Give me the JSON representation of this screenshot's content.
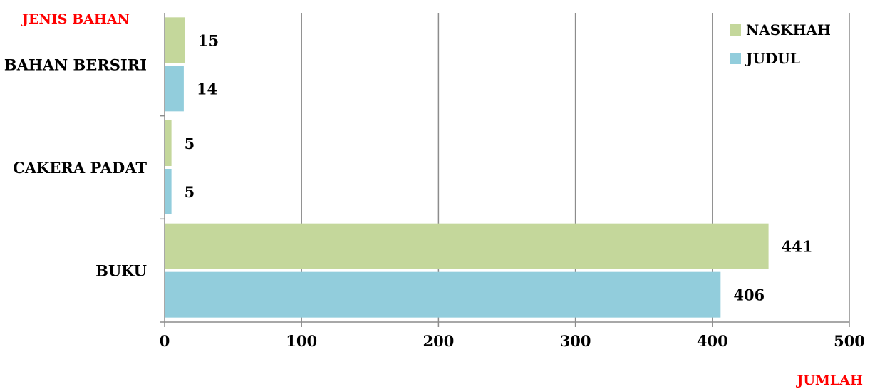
{
  "chart_data": {
    "type": "bar",
    "orientation": "horizontal",
    "ylabel": "JENIS BAHAN",
    "xlabel": "JUMLAH",
    "categories": [
      "BAHAN BERSIRI",
      "CAKERA PADAT",
      "BUKU"
    ],
    "series": [
      {
        "name": "NASKHAH",
        "color": "#c4d79b",
        "values": [
          15,
          5,
          441
        ]
      },
      {
        "name": "JUDUL",
        "color": "#92cddc",
        "values": [
          14,
          5,
          406
        ]
      }
    ],
    "xlim": [
      0,
      500
    ],
    "xticks": [
      0,
      100,
      200,
      300,
      400,
      500
    ],
    "grid": "vertical",
    "legend": "top-right"
  }
}
